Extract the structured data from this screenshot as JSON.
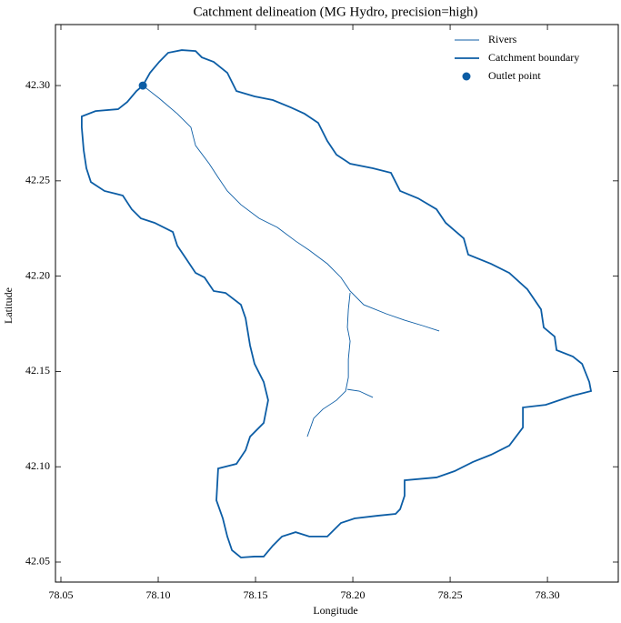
{
  "chart_data": {
    "type": "line",
    "title": "Catchment delineation (MG Hydro, precision=high)",
    "x_label": "Longitude",
    "y_label": "Latitude",
    "xlim": [
      78.0472,
      78.3364
    ],
    "ylim": [
      42.0395,
      42.332
    ],
    "xticks": [
      78.05,
      {
        "value": 78.1,
        "label": "78.10"
      },
      78.15,
      {
        "value": 78.2,
        "label": "78.20"
      },
      78.25,
      {
        "value": 78.3,
        "label": "78.30"
      }
    ],
    "yticks": [
      42.05,
      {
        "value": 42.1,
        "label": "42.10"
      },
      42.15,
      {
        "value": 42.2,
        "label": "42.20"
      },
      42.25,
      {
        "value": 42.3,
        "label": "42.30"
      }
    ],
    "legend": "upper right",
    "series": [
      {
        "name": "Rivers",
        "color": "#0c5da5",
        "style": "thin",
        "x": [
          78.0921,
          78.1005,
          78.1098,
          78.1168,
          78.1192,
          78.1262,
          78.1308,
          78.1355,
          78.1425,
          78.1519,
          78.1612,
          78.1706,
          78.1776,
          78.1869,
          78.1939,
          78.1986,
          78.2056,
          78.2173,
          78.2266,
          78.236,
          78.2444,
          null,
          78.1986,
          78.1977,
          78.1972,
          78.1986,
          78.1977,
          78.1977,
          78.1963,
          78.1916,
          78.1846,
          78.1799,
          78.1766,
          null,
          78.1972,
          78.2033,
          78.2103
        ],
        "y": [
          42.3,
          42.2933,
          42.2852,
          42.2781,
          42.2685,
          42.259,
          42.2518,
          42.2447,
          42.2375,
          42.2303,
          42.2256,
          42.2184,
          42.2136,
          42.2065,
          42.1993,
          42.1922,
          42.185,
          42.1802,
          42.1769,
          42.174,
          42.1712,
          null,
          42.1912,
          42.1826,
          42.1731,
          42.1659,
          42.1564,
          42.1469,
          42.1397,
          42.1349,
          42.1302,
          42.1254,
          42.1158,
          null,
          42.1406,
          42.1397,
          42.1364
        ]
      },
      {
        "name": "Catchment boundary",
        "color": "#0c5da5",
        "style": "thick",
        "x": [
          78.0921,
          78.0958,
          78.1005,
          78.1051,
          78.1121,
          78.1192,
          78.1224,
          78.1285,
          78.1355,
          78.1402,
          78.1495,
          78.1589,
          78.1682,
          78.1752,
          78.1822,
          78.1869,
          78.1916,
          78.1986,
          78.2103,
          78.2196,
          78.2243,
          78.2336,
          78.243,
          78.2477,
          78.257,
          78.2593,
          78.271,
          78.2804,
          78.2897,
          78.2967,
          78.2981,
          78.3037,
          78.3047,
          78.3131,
          78.3178,
          78.3215,
          78.3224,
          78.3131,
          78.2991,
          78.2874,
          78.2874,
          78.2804,
          78.271,
          78.2617,
          78.2523,
          78.243,
          78.2266,
          78.2266,
          78.2243,
          78.222,
          78.2126,
          78.2009,
          78.1939,
          78.1869,
          78.1776,
          78.1706,
          78.1636,
          78.1589,
          78.1542,
          78.1495,
          78.1425,
          78.1379,
          78.1355,
          78.1332,
          78.1299,
          78.1308,
          78.1402,
          78.1449,
          78.1472,
          78.1542,
          78.1565,
          78.1542,
          78.1495,
          78.1472,
          78.1449,
          78.1425,
          78.1346,
          78.1285,
          78.1238,
          78.1192,
          78.1145,
          78.1098,
          78.1075,
          78.0981,
          78.0911,
          78.0864,
          78.0818,
          78.0724,
          78.0654,
          78.0631,
          78.0617,
          78.0607,
          78.0607,
          78.0678,
          78.0794,
          78.0841,
          78.0888,
          78.0921
        ],
        "y": [
          42.3,
          42.3067,
          42.3124,
          42.3172,
          42.3186,
          42.3181,
          42.3148,
          42.3124,
          42.3067,
          42.2971,
          42.2943,
          42.2924,
          42.2885,
          42.2852,
          42.2804,
          42.2709,
          42.2637,
          42.259,
          42.2566,
          42.2542,
          42.2447,
          42.2408,
          42.2351,
          42.228,
          42.2198,
          42.2113,
          42.2065,
          42.2017,
          42.1931,
          42.1826,
          42.1731,
          42.1683,
          42.1612,
          42.1578,
          42.154,
          42.1445,
          42.1397,
          42.1373,
          42.1325,
          42.1311,
          42.1206,
          42.1111,
          42.1063,
          42.1025,
          42.0977,
          42.0944,
          42.0929,
          42.0848,
          42.0777,
          42.0753,
          42.0743,
          42.0729,
          42.0705,
          42.0634,
          42.0634,
          42.0657,
          42.0634,
          42.0586,
          42.0529,
          42.0529,
          42.0524,
          42.0562,
          42.0634,
          42.0729,
          42.0824,
          42.0991,
          42.1015,
          42.1087,
          42.1158,
          42.123,
          42.1349,
          42.1445,
          42.154,
          42.1636,
          42.1779,
          42.185,
          42.1912,
          42.1922,
          42.1993,
          42.2017,
          42.2089,
          42.216,
          42.2232,
          42.228,
          42.2303,
          42.2351,
          42.2423,
          42.2447,
          42.2494,
          42.2566,
          42.2661,
          42.2781,
          42.2838,
          42.2866,
          42.2876,
          42.2914,
          42.2971,
          42.3
        ]
      },
      {
        "name": "Outlet point",
        "color": "#0c5da5",
        "style": "marker",
        "x": [
          78.0921
        ],
        "y": [
          42.3
        ]
      }
    ]
  }
}
